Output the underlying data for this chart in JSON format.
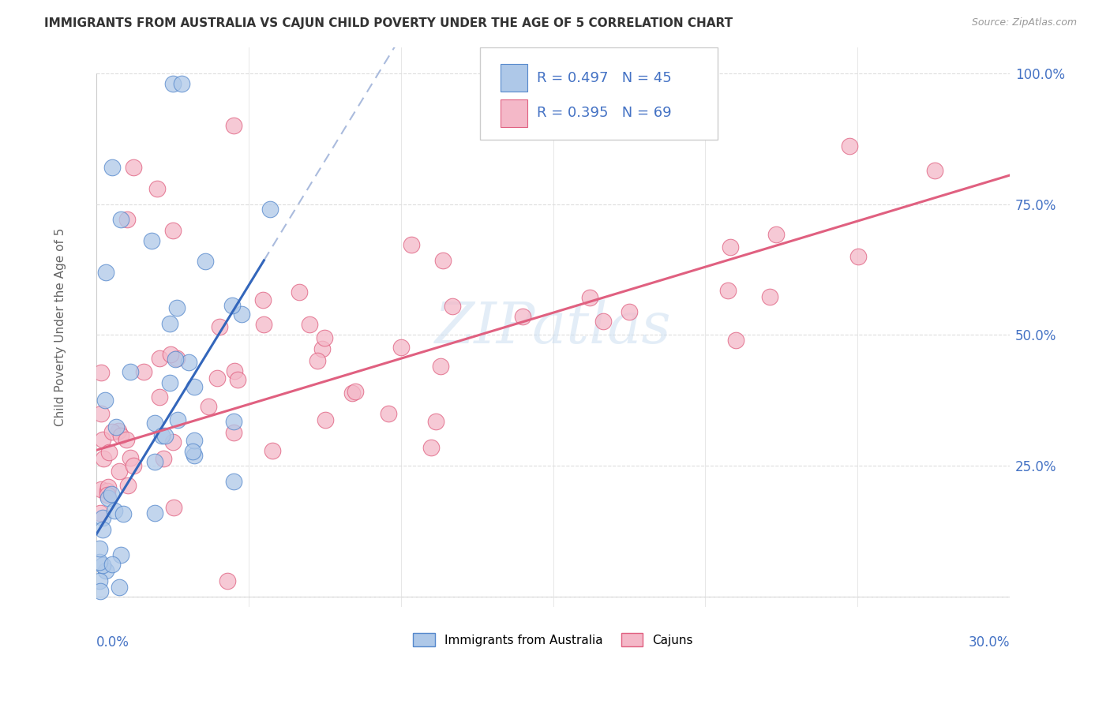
{
  "title": "IMMIGRANTS FROM AUSTRALIA VS CAJUN CHILD POVERTY UNDER THE AGE OF 5 CORRELATION CHART",
  "source": "Source: ZipAtlas.com",
  "ylabel": "Child Poverty Under the Age of 5",
  "legend_label1": "Immigrants from Australia",
  "legend_label2": "Cajuns",
  "R1": 0.497,
  "N1": 45,
  "R2": 0.395,
  "N2": 69,
  "color1": "#aec8e8",
  "color2": "#f4b8c8",
  "edge1": "#5588cc",
  "edge2": "#e06080",
  "trendline1_color": "#3366bb",
  "trendline2_color": "#e06080",
  "trendline1_dash_color": "#aabbdd",
  "xlim": [
    0.0,
    0.3
  ],
  "ylim": [
    -0.02,
    1.05
  ],
  "ytick_vals": [
    0.0,
    0.25,
    0.5,
    0.75,
    1.0
  ],
  "ytick_labels": [
    "",
    "25.0%",
    "50.0%",
    "75.0%",
    "100.0%"
  ],
  "watermark_color": "#c8ddf0",
  "watermark_alpha": 0.5,
  "bg_color": "#ffffff",
  "grid_color": "#dddddd",
  "title_color": "#333333",
  "source_color": "#999999",
  "axis_label_color": "#4472c4",
  "ylabel_color": "#666666"
}
